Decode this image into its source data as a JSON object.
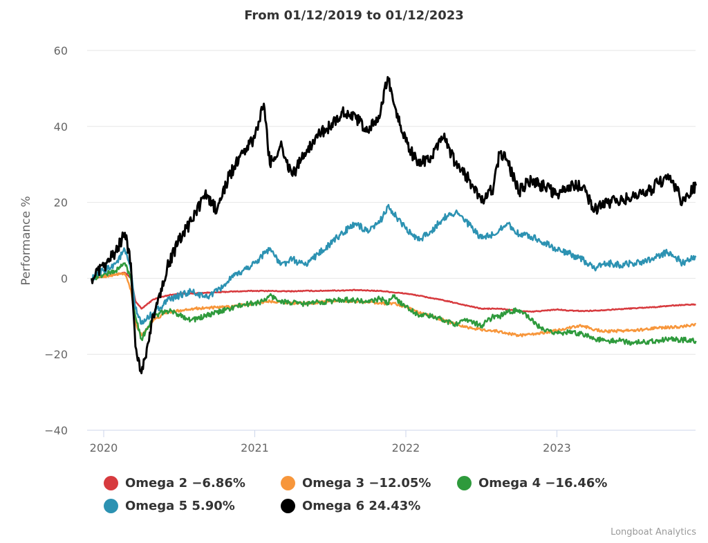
{
  "title": "From 01/12/2019 to 01/12/2023",
  "credits": "Longboat Analytics",
  "chart_data": {
    "type": "line",
    "title": "From 01/12/2019 to 01/12/2023",
    "xlabel": "",
    "ylabel": "Performance %",
    "ylim": [
      -40,
      60
    ],
    "yticks": [
      60,
      40,
      20,
      0,
      -20,
      -40
    ],
    "ytick_labels": [
      "60",
      "40",
      "20",
      "0",
      "−20",
      "−40"
    ],
    "xlim": [
      2019.92,
      2023.92
    ],
    "xticks": [
      2020,
      2021,
      2022,
      2023
    ],
    "xtick_labels": [
      "2020",
      "2021",
      "2022",
      "2023"
    ],
    "grid": true,
    "legend_position": "bottom",
    "x": [
      2019.92,
      2020.0,
      2020.08,
      2020.14,
      2020.18,
      2020.21,
      2020.25,
      2020.33,
      2020.42,
      2020.5,
      2020.58,
      2020.67,
      2020.75,
      2020.83,
      2020.92,
      2021.0,
      2021.06,
      2021.1,
      2021.17,
      2021.25,
      2021.33,
      2021.42,
      2021.5,
      2021.58,
      2021.67,
      2021.75,
      2021.83,
      2021.88,
      2021.92,
      2022.0,
      2022.08,
      2022.17,
      2022.25,
      2022.33,
      2022.42,
      2022.5,
      2022.58,
      2022.62,
      2022.67,
      2022.75,
      2022.83,
      2022.92,
      2023.0,
      2023.08,
      2023.17,
      2023.25,
      2023.33,
      2023.42,
      2023.5,
      2023.58,
      2023.67,
      2023.75,
      2023.83,
      2023.92
    ],
    "series": [
      {
        "name": "Omega 2",
        "color": "#d73a3e",
        "final_label": "-6.86%",
        "values": [
          0,
          0.5,
          1,
          1.5,
          0,
          -6,
          -8,
          -5.5,
          -4.5,
          -4,
          -4,
          -3.8,
          -3.7,
          -3.5,
          -3.4,
          -3.3,
          -3.3,
          -3.3,
          -3.4,
          -3.4,
          -3.3,
          -3.3,
          -3.2,
          -3.2,
          -3.1,
          -3.2,
          -3.3,
          -3.5,
          -3.7,
          -4,
          -4.5,
          -5.2,
          -5.8,
          -6.5,
          -7.3,
          -8,
          -8,
          -8,
          -8.2,
          -8.6,
          -8.8,
          -8.5,
          -8.2,
          -8.5,
          -8.6,
          -8.5,
          -8.3,
          -8.1,
          -7.9,
          -7.7,
          -7.5,
          -7.2,
          -7,
          -6.86
        ]
      },
      {
        "name": "Omega 3",
        "color": "#f7963b",
        "final_label": "-12.05%",
        "values": [
          0,
          0.5,
          1,
          1.3,
          -3,
          -12,
          -15,
          -11,
          -9,
          -8.5,
          -8,
          -7.8,
          -7.7,
          -7.5,
          -7,
          -6.5,
          -6.2,
          -6,
          -6.2,
          -6.5,
          -6.6,
          -6.3,
          -6,
          -5.9,
          -6,
          -6.2,
          -6.5,
          -6.7,
          -6.5,
          -7.5,
          -9,
          -10,
          -11,
          -12,
          -13,
          -13.5,
          -13.8,
          -14,
          -14.5,
          -15,
          -14.8,
          -14.3,
          -13.7,
          -13,
          -12.5,
          -13.5,
          -14,
          -13.8,
          -13.7,
          -13.5,
          -13,
          -12.9,
          -12.7,
          -12.05
        ]
      },
      {
        "name": "Omega 4",
        "color": "#2e9a3c",
        "final_label": "-16.46%",
        "values": [
          0,
          1,
          2,
          4,
          0,
          -10,
          -16,
          -10,
          -8.5,
          -9.5,
          -11,
          -10,
          -9,
          -8,
          -7,
          -6.5,
          -6,
          -4.5,
          -6,
          -6.5,
          -6.7,
          -6.3,
          -6,
          -5.6,
          -5.8,
          -6.3,
          -5.3,
          -6.5,
          -4.8,
          -7.5,
          -9.5,
          -10,
          -11,
          -12,
          -11,
          -12.5,
          -10,
          -10,
          -9,
          -8.3,
          -11,
          -14,
          -14.2,
          -14.3,
          -14.5,
          -16,
          -16.5,
          -16.4,
          -17,
          -16.7,
          -16.3,
          -16,
          -16.2,
          -16.46
        ]
      },
      {
        "name": "Omega 5",
        "color": "#2c92b2",
        "final_label": "5.90%",
        "values": [
          0,
          2,
          4,
          7.5,
          2,
          -8,
          -12,
          -9,
          -6,
          -4.5,
          -3.5,
          -5,
          -3.5,
          -0.5,
          2,
          4,
          6.5,
          8,
          3.5,
          5,
          3.5,
          6.5,
          9,
          12,
          14.5,
          12,
          15,
          19,
          17,
          13,
          10,
          12.5,
          16,
          17.5,
          14,
          10.5,
          11.5,
          13,
          14.5,
          11.5,
          11,
          9.5,
          7.5,
          6.5,
          5,
          2.5,
          4,
          3.5,
          4,
          4.5,
          6,
          7,
          4,
          5.9
        ]
      },
      {
        "name": "Omega 6",
        "color": "#000000",
        "final_label": "24.43%",
        "values": [
          0,
          3,
          7,
          12,
          4,
          -18,
          -25,
          -10,
          3,
          10,
          15,
          22,
          18,
          27,
          33,
          37,
          46,
          30,
          35,
          27,
          33,
          38,
          40,
          44,
          42,
          39,
          43,
          53,
          46,
          36,
          30,
          32,
          37,
          30,
          26,
          20,
          24,
          33,
          31,
          23,
          26,
          24,
          22,
          24.5,
          24,
          18,
          20,
          20.5,
          21.5,
          22,
          25,
          27,
          20,
          24.43
        ]
      }
    ]
  },
  "legend": [
    {
      "label": "Omega 2 −6.86%",
      "color": "#d73a3e"
    },
    {
      "label": "Omega 3 −12.05%",
      "color": "#f7963b"
    },
    {
      "label": "Omega 4 −16.46%",
      "color": "#2e9a3c"
    },
    {
      "label": "Omega 5 5.90%",
      "color": "#2c92b2"
    },
    {
      "label": "Omega 6 24.43%",
      "color": "#000000"
    }
  ]
}
